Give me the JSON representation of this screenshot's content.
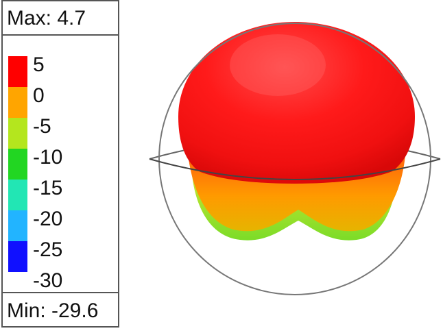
{
  "legend": {
    "max_label": "Max: 4.7",
    "min_label": "Min: -29.6",
    "ticks": [
      "5",
      "0",
      "-5",
      "-10",
      "-15",
      "-20",
      "-25",
      "-30"
    ],
    "bands": [
      {
        "color": "#ff0000"
      },
      {
        "color": "#ffa500"
      },
      {
        "color": "#b4e61e"
      },
      {
        "color": "#22d622"
      },
      {
        "color": "#22e6b4"
      },
      {
        "color": "#22b4ff"
      },
      {
        "color": "#1010ff"
      }
    ]
  },
  "plot": {
    "max_color": "#ff1a1a",
    "mid_color": "#ff8c00",
    "low_color": "#9be628"
  }
}
